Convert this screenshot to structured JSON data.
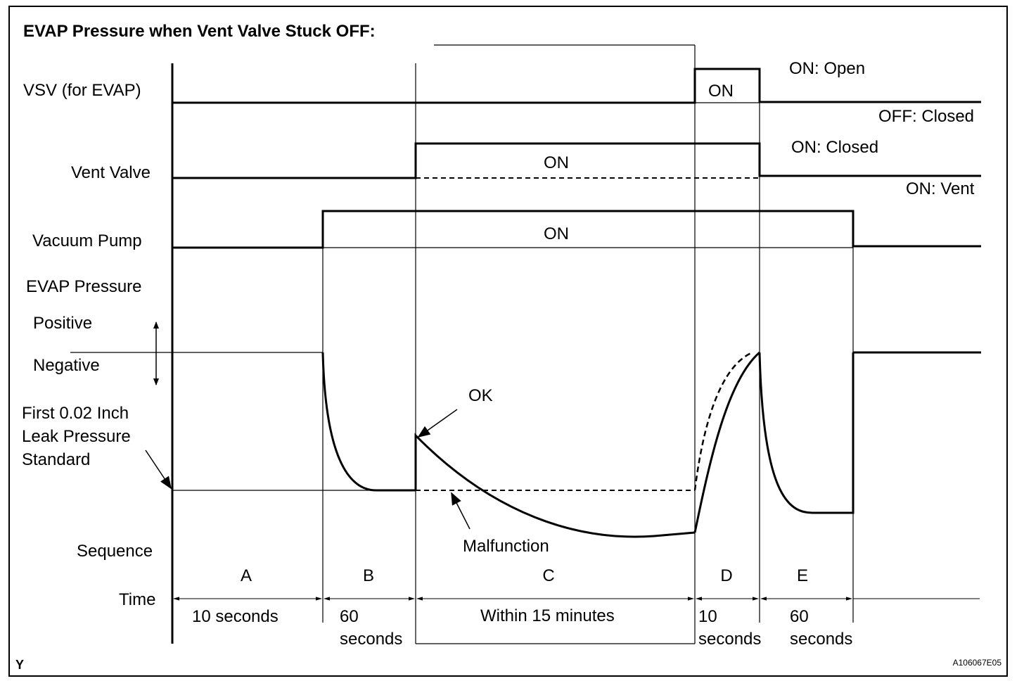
{
  "title": "EVAP Pressure when Vent Valve Stuck OFF:",
  "row_labels": {
    "vsv": "VSV (for EVAP)",
    "vent_valve": "Vent Valve",
    "vacuum_pump": "Vacuum Pump",
    "evap_pressure": "EVAP Pressure",
    "positive": "Positive",
    "negative": "Negative",
    "leak_line1": "First 0.02 Inch",
    "leak_line2": "Leak Pressure",
    "leak_line3": "Standard",
    "sequence": "Sequence",
    "time": "Time"
  },
  "signal_labels": {
    "vsv_on": "ON",
    "vsv_on_state": "ON: Open",
    "vsv_off_state": "OFF: Closed",
    "vent_on": "ON",
    "vent_on_state": "ON: Closed",
    "vent_off_state": "ON: Vent",
    "pump_on": "ON"
  },
  "annotations": {
    "ok": "OK",
    "malfunction": "Malfunction"
  },
  "sequence": [
    {
      "letter": "A",
      "time1": "10 seconds",
      "time2": ""
    },
    {
      "letter": "B",
      "time1": "60",
      "time2": "seconds"
    },
    {
      "letter": "C",
      "time1": "Within 15 minutes",
      "time2": ""
    },
    {
      "letter": "D",
      "time1": "10",
      "time2": "seconds"
    },
    {
      "letter": "E",
      "time1": "60",
      "time2": "seconds"
    }
  ],
  "corner_label": "Y",
  "figure_id": "A106067E05"
}
